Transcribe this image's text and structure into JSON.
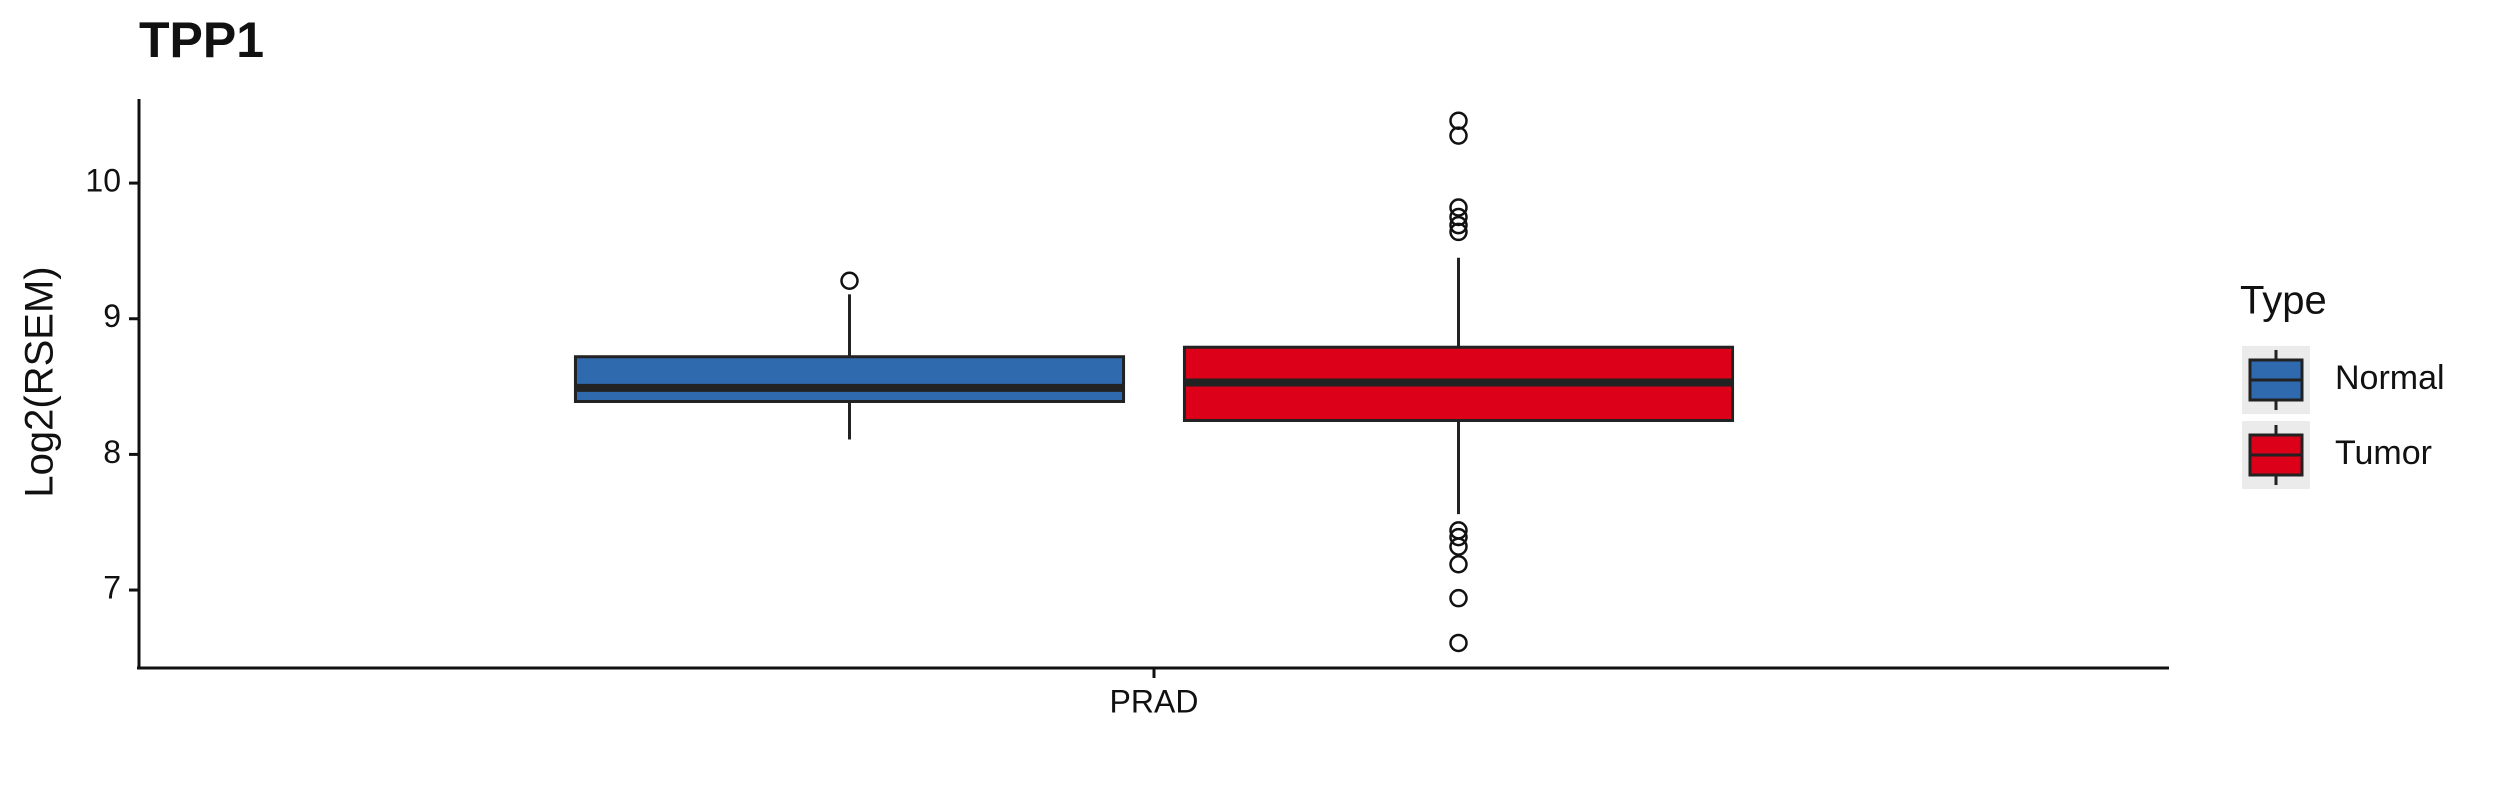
{
  "chart_data": {
    "type": "box",
    "title": "TPP1",
    "y_label": "Log2(RSEM)",
    "categories": [
      "PRAD"
    ],
    "legend_title": "Type",
    "ylim": [
      6.44,
      10.62
    ],
    "yticks": [
      7,
      8,
      9,
      10
    ],
    "series": [
      {
        "name": "Normal",
        "color": "#2e6aad",
        "values": [
          {
            "min": 8.11,
            "q1": 8.39,
            "median": 8.49,
            "q3": 8.72,
            "max": 9.18,
            "outliers": [
              9.28
            ]
          }
        ]
      },
      {
        "name": "Tumor",
        "color": "#dc0018",
        "values": [
          {
            "min": 7.56,
            "q1": 8.25,
            "median": 8.53,
            "q3": 8.79,
            "max": 9.45,
            "outliers": [
              10.46,
              10.35,
              9.82,
              9.75,
              9.69,
              9.64,
              7.44,
              7.39,
              7.32,
              7.19,
              6.94,
              6.61
            ]
          }
        ]
      }
    ]
  }
}
